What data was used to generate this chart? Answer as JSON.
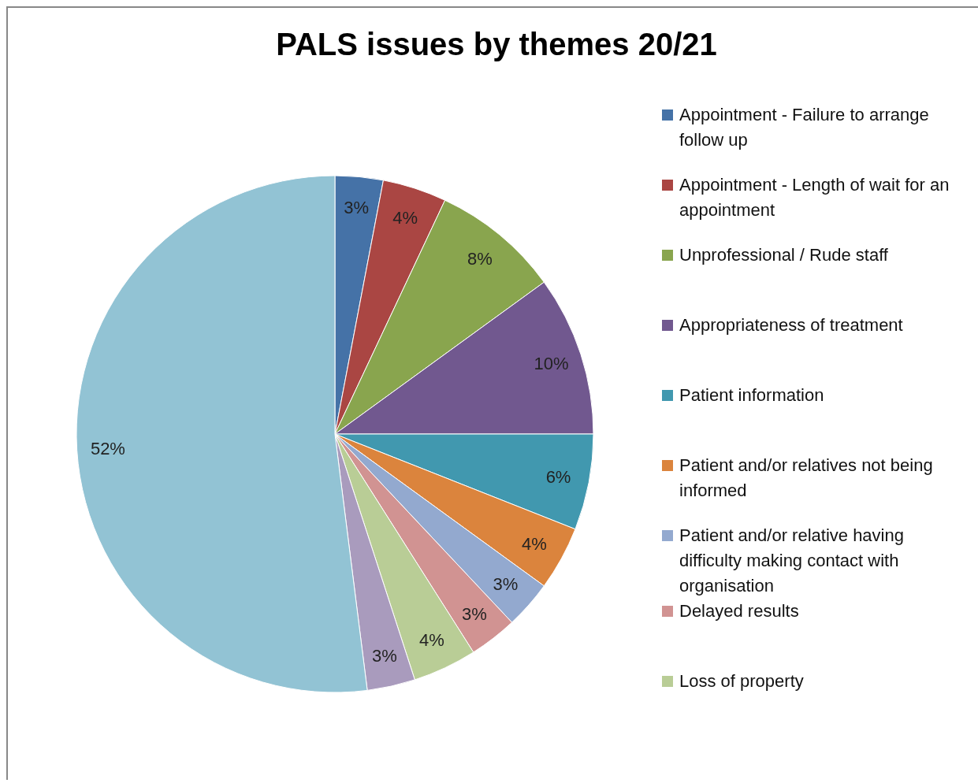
{
  "chart_data": {
    "type": "pie",
    "title": "PALS issues by themes 20/21",
    "categories": [
      "Appointment - Failure to arrange follow up",
      "Appointment - Length of wait for an appointment",
      "Unprofessional / Rude staff",
      "Appropriateness of treatment",
      "Patient information",
      "Patient and/or relatives not being informed",
      "Patient and/or relative having difficulty making contact with organisation",
      "Delayed results",
      "Loss of property",
      null,
      null
    ],
    "values": [
      3,
      4,
      8,
      10,
      6,
      4,
      3,
      3,
      4,
      3,
      52
    ],
    "value_labels": [
      "3%",
      "4%",
      "8%",
      "10%",
      "6%",
      "4%",
      "3%",
      "3%",
      "4%",
      "3%",
      "52%"
    ],
    "colors": [
      "#4572a7",
      "#aa4643",
      "#89a54e",
      "#71588f",
      "#4198af",
      "#db843d",
      "#93a9cf",
      "#d19392",
      "#b9cd96",
      "#a99bbd",
      "#92c3d4"
    ],
    "legend": "right"
  }
}
